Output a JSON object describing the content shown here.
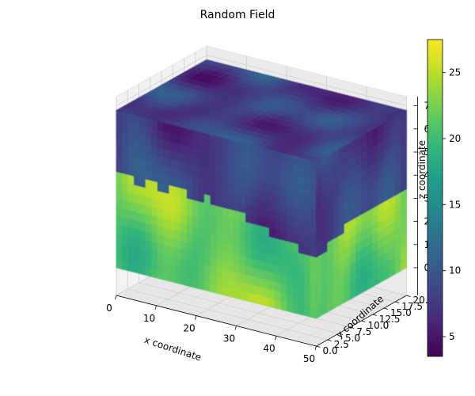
{
  "chart_data": {
    "type": "scatter",
    "title": "Random Field",
    "projection": "3d",
    "xlabel": "x coordinate",
    "ylabel": "y coordinate",
    "zlabel": "z coordinate",
    "xlim": [
      0,
      50
    ],
    "ylim": [
      0,
      20
    ],
    "zlim": [
      0,
      7
    ],
    "x_ticks": [
      0,
      10,
      20,
      30,
      40,
      50
    ],
    "x_tick_labels": [
      "0",
      "10",
      "20",
      "30",
      "40",
      "50"
    ],
    "y_ticks": [
      0,
      2.5,
      5,
      7.5,
      10,
      12.5,
      15,
      17.5,
      20
    ],
    "y_tick_labels": [
      "0.0",
      "2.5",
      "5.0",
      "7.5",
      "10.0",
      "12.5",
      "15.0",
      "17.5",
      "20.0"
    ],
    "z_ticks": [
      0,
      1,
      2,
      3,
      4,
      5,
      6,
      7
    ],
    "z_tick_labels": [
      "0",
      "1",
      "2",
      "3",
      "4",
      "5",
      "6",
      "7"
    ],
    "colormap": "viridis",
    "colorbar": {
      "min": 3.5,
      "max": 27.5,
      "ticks": [
        5,
        10,
        15,
        20,
        25
      ],
      "tick_labels": [
        "5",
        "10",
        "15",
        "20",
        "25"
      ],
      "stops": [
        "#440154",
        "#482878",
        "#3e4989",
        "#31688e",
        "#26828e",
        "#1f9e89",
        "#35b779",
        "#6ece58",
        "#b5de2b",
        "#fde725"
      ]
    },
    "field": {
      "upper_layer_z_range": [
        4,
        7
      ],
      "upper_layer_value_range": [
        4,
        12
      ],
      "lower_layer_z_range": [
        0,
        4
      ],
      "lower_layer_value_range": [
        17,
        27
      ]
    }
  }
}
